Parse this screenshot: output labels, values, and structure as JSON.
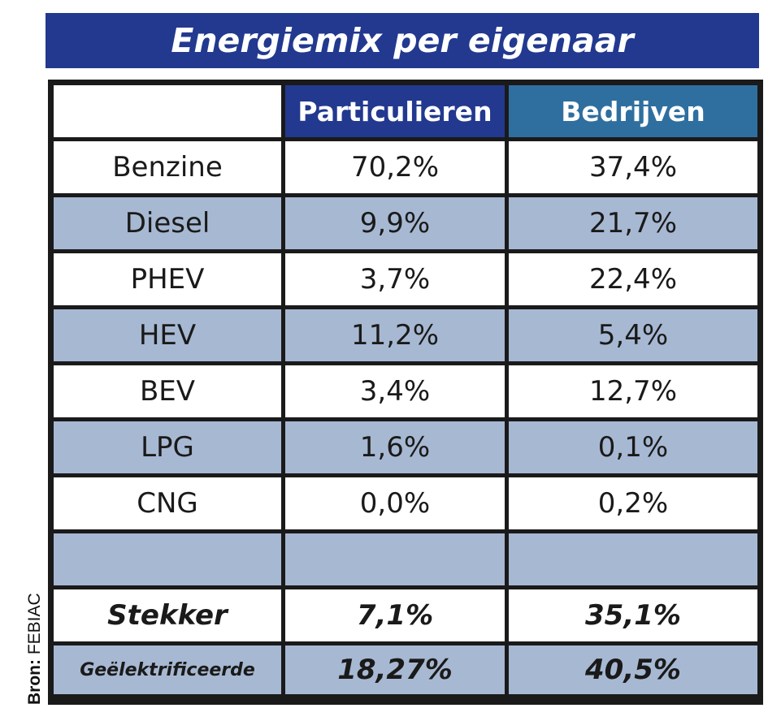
{
  "title": "Energiemix per eigenaar",
  "source": {
    "label": "Bron:",
    "value": "FEBIAC"
  },
  "chart_data": {
    "type": "table",
    "title": "Energiemix per eigenaar",
    "columns": [
      "",
      "Particulieren",
      "Bedrijven"
    ],
    "rows": [
      {
        "label": "Benzine",
        "particulieren": "70,2%",
        "bedrijven": "37,4%"
      },
      {
        "label": "Diesel",
        "particulieren": "9,9%",
        "bedrijven": "21,7%"
      },
      {
        "label": "PHEV",
        "particulieren": "3,7%",
        "bedrijven": "22,4%"
      },
      {
        "label": "HEV",
        "particulieren": "11,2%",
        "bedrijven": "5,4%"
      },
      {
        "label": "BEV",
        "particulieren": "3,4%",
        "bedrijven": "12,7%"
      },
      {
        "label": "LPG",
        "particulieren": "1,6%",
        "bedrijven": "0,1%"
      },
      {
        "label": "CNG",
        "particulieren": "0,0%",
        "bedrijven": "0,2%"
      },
      {
        "label": "",
        "particulieren": "",
        "bedrijven": ""
      },
      {
        "label": "Stekker",
        "particulieren": "7,1%",
        "bedrijven": "35,1%"
      },
      {
        "label": "Geëlektrificeerde",
        "particulieren": "18,27%",
        "bedrijven": "40,5%"
      }
    ]
  },
  "colors": {
    "title_bg": "#22398f",
    "header_particulieren": "#22398f",
    "header_bedrijven": "#2f6fa0",
    "band": "#a7b8d2",
    "border": "#1a1a1a"
  }
}
